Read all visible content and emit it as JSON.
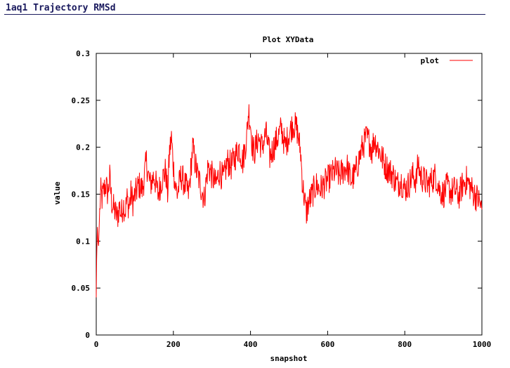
{
  "page": {
    "title": "1aq1 Trajectory RMSd"
  },
  "chart_data": {
    "type": "line",
    "title": "Plot XYData",
    "xlabel": "snapshot",
    "ylabel": "value",
    "xlim": [
      0,
      1000
    ],
    "ylim": [
      0,
      0.3
    ],
    "xticks": [
      0,
      200,
      400,
      600,
      800,
      1000
    ],
    "yticks": [
      0,
      0.05,
      0.1,
      0.15,
      0.2,
      0.25,
      0.3
    ],
    "xtick_labels": [
      "0",
      "200",
      "400",
      "600",
      "800",
      "1000"
    ],
    "ytick_labels": [
      "0",
      "0.05",
      "0.1",
      "0.15",
      "0.2",
      "0.25",
      "0.3"
    ],
    "grid": false,
    "legend": "top-right",
    "series": [
      {
        "name": "plot",
        "color": "#ff0000",
        "x": [
          0,
          1,
          2,
          3,
          4,
          5,
          6,
          8,
          10,
          12,
          15,
          20,
          25,
          30,
          35,
          40,
          45,
          50,
          55,
          60,
          65,
          70,
          75,
          80,
          85,
          90,
          95,
          100,
          110,
          120,
          125,
          130,
          135,
          140,
          150,
          160,
          170,
          180,
          185,
          190,
          195,
          200,
          205,
          210,
          220,
          230,
          240,
          250,
          260,
          270,
          280,
          290,
          300,
          310,
          320,
          330,
          340,
          350,
          360,
          370,
          380,
          390,
          395,
          400,
          405,
          410,
          420,
          430,
          440,
          450,
          460,
          470,
          480,
          490,
          500,
          510,
          520,
          530,
          535,
          540,
          545,
          550,
          560,
          570,
          580,
          590,
          600,
          610,
          620,
          630,
          640,
          650,
          660,
          670,
          680,
          690,
          700,
          710,
          715,
          720,
          730,
          740,
          750,
          760,
          770,
          780,
          790,
          800,
          810,
          820,
          830,
          835,
          840,
          850,
          860,
          870,
          880,
          890,
          900,
          910,
          920,
          930,
          940,
          950,
          960,
          970,
          980,
          990,
          995,
          1000
        ],
        "values": [
          0.04,
          0.08,
          0.1,
          0.115,
          0.103,
          0.098,
          0.095,
          0.12,
          0.14,
          0.152,
          0.145,
          0.155,
          0.16,
          0.15,
          0.168,
          0.142,
          0.135,
          0.13,
          0.125,
          0.138,
          0.128,
          0.14,
          0.132,
          0.145,
          0.136,
          0.15,
          0.142,
          0.148,
          0.16,
          0.155,
          0.17,
          0.185,
          0.17,
          0.16,
          0.17,
          0.15,
          0.165,
          0.175,
          0.15,
          0.195,
          0.21,
          0.18,
          0.16,
          0.15,
          0.17,
          0.16,
          0.15,
          0.2,
          0.175,
          0.16,
          0.145,
          0.18,
          0.17,
          0.16,
          0.175,
          0.165,
          0.185,
          0.18,
          0.19,
          0.2,
          0.185,
          0.21,
          0.24,
          0.225,
          0.2,
          0.195,
          0.21,
          0.2,
          0.215,
          0.19,
          0.2,
          0.21,
          0.22,
          0.2,
          0.215,
          0.225,
          0.22,
          0.195,
          0.16,
          0.145,
          0.13,
          0.14,
          0.15,
          0.16,
          0.155,
          0.16,
          0.165,
          0.17,
          0.175,
          0.17,
          0.175,
          0.18,
          0.165,
          0.17,
          0.185,
          0.2,
          0.21,
          0.205,
          0.195,
          0.21,
          0.2,
          0.19,
          0.18,
          0.175,
          0.17,
          0.16,
          0.165,
          0.155,
          0.16,
          0.17,
          0.165,
          0.185,
          0.17,
          0.165,
          0.16,
          0.165,
          0.17,
          0.155,
          0.15,
          0.158,
          0.152,
          0.155,
          0.148,
          0.16,
          0.165,
          0.158,
          0.15,
          0.145,
          0.14,
          0.132
        ]
      }
    ]
  }
}
